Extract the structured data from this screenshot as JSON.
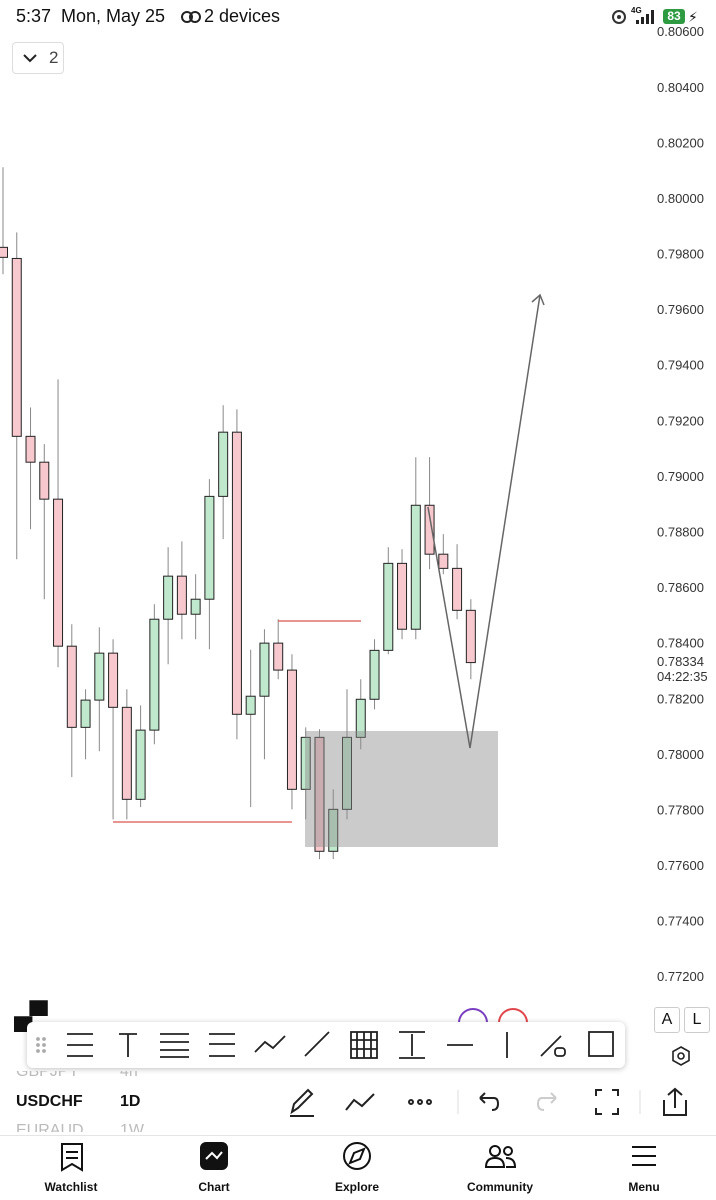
{
  "status_bar": {
    "time": "5:37",
    "date": "Mon, May 25",
    "devices": "2 devices",
    "network": "4G",
    "battery": "83"
  },
  "layout_selector": "2",
  "chart_data": {
    "type": "candlestick",
    "open": [
      0.79828,
      0.79788,
      0.79148,
      0.79055,
      0.78922,
      0.78393,
      0.78101,
      0.78199,
      0.78368,
      0.78173,
      0.77842,
      0.78091,
      0.7849,
      0.78645,
      0.78508,
      0.78562,
      0.78932,
      0.79163,
      0.78148,
      0.78213,
      0.78404,
      0.78307,
      0.77878,
      0.78065,
      0.77655,
      0.77806,
      0.78065,
      0.78202,
      0.78378,
      0.78691,
      0.78454,
      0.789,
      0.78724,
      0.78673,
      0.78522
    ],
    "high": [
      0.80116,
      0.79882,
      0.79252,
      0.7912,
      0.79353,
      0.78472,
      0.78238,
      0.78461,
      0.78418,
      0.78238,
      0.7818,
      0.78544,
      0.78749,
      0.7877,
      0.78652,
      0.78994,
      0.7926,
      0.79245,
      0.7838,
      0.78454,
      0.7849,
      0.78364,
      0.78101,
      0.78094,
      0.77878,
      0.78238,
      0.78274,
      0.78418,
      0.78749,
      0.78742,
      0.79073,
      0.79073,
      0.78796,
      0.7876,
      0.78562
    ],
    "low": [
      0.79731,
      0.78706,
      0.78814,
      0.78562,
      0.78317,
      0.77922,
      0.77986,
      0.78015,
      0.7777,
      0.7777,
      0.77814,
      0.7804,
      0.78328,
      0.78418,
      0.78418,
      0.78382,
      0.78778,
      0.78058,
      0.77814,
      0.77986,
      0.78274,
      0.77806,
      0.7777,
      0.77627,
      0.77627,
      0.7777,
      0.78022,
      0.78166,
      0.78364,
      0.78418,
      0.78418,
      0.7867,
      0.78652,
      0.7849,
      0.78274
    ],
    "close": [
      0.79792,
      0.79148,
      0.79055,
      0.78922,
      0.78393,
      0.78101,
      0.78199,
      0.78368,
      0.78173,
      0.77842,
      0.78091,
      0.7849,
      0.78645,
      0.78508,
      0.78562,
      0.78932,
      0.79163,
      0.78148,
      0.78213,
      0.78404,
      0.78307,
      0.77878,
      0.78065,
      0.77655,
      0.77806,
      0.78065,
      0.78202,
      0.78378,
      0.78691,
      0.78454,
      0.789,
      0.78724,
      0.78673,
      0.78522,
      0.78334
    ],
    "up_color": "#bfe8cc",
    "down_color": "#f7c8cd",
    "ylim": [
      0.7712,
      0.8061
    ],
    "yticks": [
      {
        "value": 0.806,
        "label": "0.80600"
      },
      {
        "value": 0.804,
        "label": "0.80400"
      },
      {
        "value": 0.802,
        "label": "0.80200"
      },
      {
        "value": 0.8,
        "label": "0.80000"
      },
      {
        "value": 0.798,
        "label": "0.79800"
      },
      {
        "value": 0.796,
        "label": "0.79600"
      },
      {
        "value": 0.794,
        "label": "0.79400"
      },
      {
        "value": 0.792,
        "label": "0.79200"
      },
      {
        "value": 0.79,
        "label": "0.79000"
      },
      {
        "value": 0.788,
        "label": "0.78800"
      },
      {
        "value": 0.786,
        "label": "0.78600"
      },
      {
        "value": 0.784,
        "label": "0.78400"
      },
      {
        "value": 0.782,
        "label": "0.78200"
      },
      {
        "value": 0.78,
        "label": "0.78000"
      },
      {
        "value": 0.778,
        "label": "0.77800"
      },
      {
        "value": 0.776,
        "label": "0.77600"
      },
      {
        "value": 0.774,
        "label": "0.77400"
      },
      {
        "value": 0.772,
        "label": "0.77200"
      }
    ],
    "last_price": 0.78334,
    "countdown": "04:22:35"
  },
  "text_tools": [
    "A",
    "L"
  ],
  "watchlist": [
    {
      "symbol": "GBPJPY",
      "interval": "4h"
    },
    {
      "symbol": "USDCHF",
      "interval": "1D"
    },
    {
      "symbol": "EURAUD",
      "interval": "1W"
    }
  ],
  "nav": [
    "Watchlist",
    "Chart",
    "Explore",
    "Community",
    "Menu"
  ]
}
